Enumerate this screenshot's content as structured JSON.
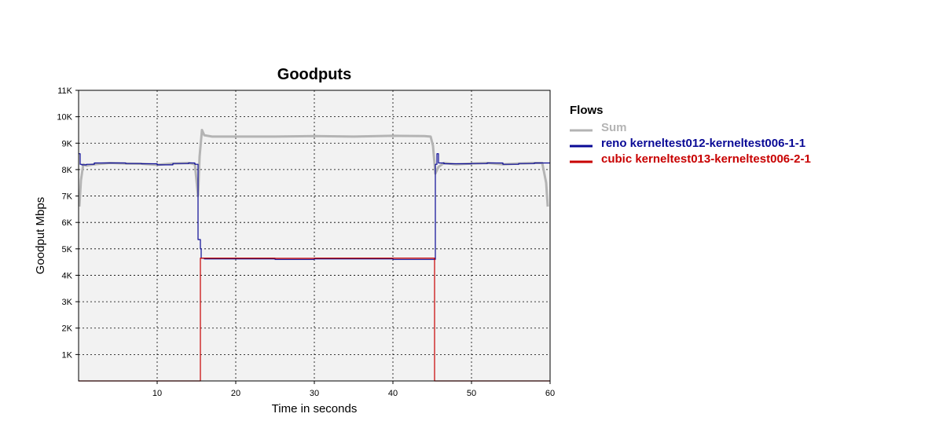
{
  "chart_data": {
    "type": "line",
    "title": "Goodputs",
    "xlabel": "Time in seconds",
    "ylabel": "Goodput Mbps",
    "xlim": [
      0,
      60
    ],
    "ylim": [
      0,
      11000
    ],
    "xticks": [
      10,
      20,
      30,
      40,
      50,
      60
    ],
    "xtick_labels": [
      "10",
      "20",
      "30",
      "40",
      "50",
      "60"
    ],
    "yticks": [
      1000,
      2000,
      3000,
      4000,
      5000,
      6000,
      7000,
      8000,
      9000,
      10000,
      11000
    ],
    "ytick_labels": [
      "1K",
      "2K",
      "3K",
      "4K",
      "5K",
      "6K",
      "7K",
      "8K",
      "9K",
      "10K",
      "11K"
    ],
    "grid": true,
    "legend_title": "Flows",
    "legend_position": "right",
    "series": [
      {
        "name": "Sum",
        "color": "#b4b4b4",
        "x": [
          0.1,
          0.3,
          0.6,
          1,
          2,
          4,
          6,
          8,
          10,
          12,
          14,
          14.8,
          15.2,
          15.4,
          15.7,
          16,
          17,
          20,
          25,
          30,
          35,
          40,
          44,
          44.8,
          45.1,
          45.4,
          45.8,
          46.5,
          48,
          50,
          52,
          54,
          56,
          58,
          59,
          59.5,
          59.7
        ],
        "y": [
          6600,
          7600,
          8200,
          8150,
          8200,
          8250,
          8230,
          8220,
          8180,
          8230,
          8250,
          8200,
          7000,
          8500,
          9500,
          9300,
          9250,
          9250,
          9250,
          9270,
          9250,
          9280,
          9270,
          9250,
          8900,
          7850,
          8100,
          8250,
          8200,
          8230,
          8250,
          8200,
          8230,
          8250,
          8250,
          7500,
          6600
        ]
      },
      {
        "name": "reno kerneltest012-kerneltest006-1-1",
        "color": "#0a0a96",
        "x": [
          0,
          0.2,
          0.4,
          1,
          2,
          4,
          6,
          8,
          10,
          12,
          14,
          14.8,
          15.1,
          15.2,
          15.4,
          15.5,
          15.6,
          16,
          20,
          25,
          30,
          35,
          40,
          45,
          45.3,
          45.4,
          45.6,
          45.8,
          46.5,
          48,
          50,
          52,
          54,
          56,
          58,
          60
        ],
        "y": [
          8600,
          8200,
          8180,
          8200,
          8250,
          8250,
          8230,
          8220,
          8180,
          8230,
          8250,
          8200,
          8200,
          5350,
          5350,
          5000,
          4650,
          4620,
          4620,
          4600,
          4620,
          4620,
          4600,
          4600,
          4600,
          8200,
          8600,
          8250,
          8220,
          8220,
          8230,
          8250,
          8200,
          8230,
          8250,
          8250
        ]
      },
      {
        "name": "cubic kerneltest013-kerneltest006-2-1",
        "color": "#c80000",
        "x": [
          0,
          15.5,
          15.5,
          16,
          20,
          25,
          30,
          35,
          40,
          45.3,
          45.3,
          60
        ],
        "y": [
          0,
          0,
          4650,
          4650,
          4650,
          4640,
          4650,
          4650,
          4650,
          4650,
          0,
          0
        ]
      }
    ]
  }
}
